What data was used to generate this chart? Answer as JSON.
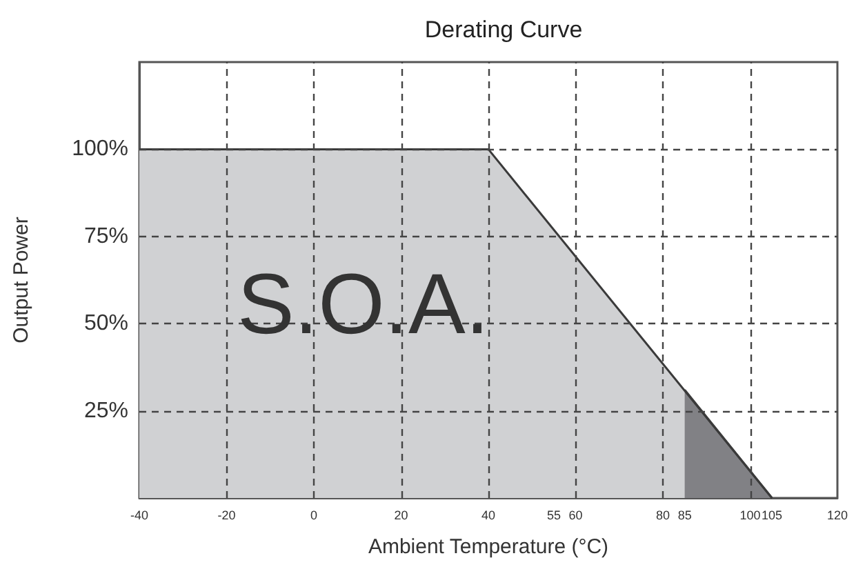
{
  "chart_data": {
    "type": "area",
    "title": "Derating Curve",
    "xlabel": "Ambient Temperature (°C)",
    "ylabel": "Output Power",
    "annotations": [
      "S.O.A."
    ],
    "series": [
      {
        "x": [
          -40,
          40,
          105
        ],
        "values": [
          100,
          100,
          0
        ],
        "color": "#d0d1d3"
      },
      {
        "x": [
          85,
          105
        ],
        "values": [
          31,
          0
        ],
        "color": "#818185"
      }
    ],
    "xlim": [
      -40,
      120
    ],
    "xticks": [
      -40,
      -20,
      0,
      20,
      40,
      {
        "value": 55,
        "label": "55"
      },
      60,
      80,
      {
        "value": 85,
        "label": "85"
      },
      100,
      {
        "value": 105,
        "label": "105"
      },
      120
    ],
    "ylim": [
      0,
      125
    ],
    "yticks": [
      {
        "value": 25,
        "label": "25%"
      },
      {
        "value": 50,
        "label": "50%"
      },
      {
        "value": 75,
        "label": "75%"
      },
      {
        "value": 100,
        "label": "100%"
      }
    ],
    "grid": true,
    "marker": "none",
    "line_style": "solid"
  }
}
